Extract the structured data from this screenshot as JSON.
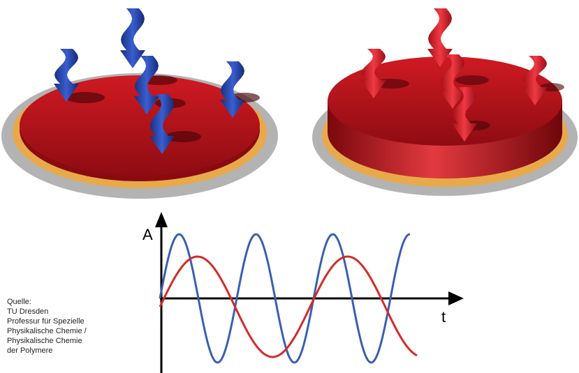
{
  "source": {
    "lines": [
      "Quelle:",
      "TU Dresden",
      "Professur für Spezielle",
      "Physikalische Chemie /",
      "Physikalische Chemie",
      "der Polymere"
    ]
  },
  "graph": {
    "y_label": "A",
    "x_label": "t"
  },
  "colors": {
    "disk_red": "#c0141c",
    "gold_ring": "#e8a94a",
    "grey_plate": "#a0a0a0",
    "arrow_blue": "#1f3ea8",
    "arrow_red": "#d81e2a",
    "wave_blue": "#3a5fb0",
    "wave_red": "#d42a2a"
  },
  "icons": {
    "blue_arrows": "blue-wavy-arrow-icon",
    "red_arrows": "red-wavy-arrow-icon"
  }
}
